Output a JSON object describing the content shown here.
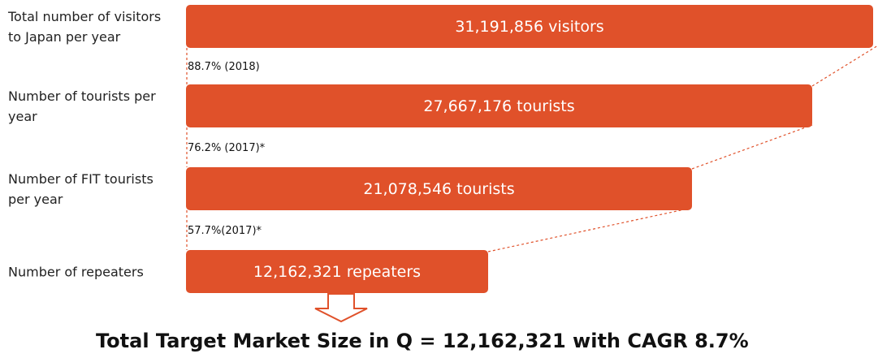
{
  "stages": [
    {
      "label": [
        "Total number of visitors",
        "to Japan per year"
      ],
      "text": "31,191,856 visitors"
    },
    {
      "label": [
        "Number of tourists per",
        "year"
      ],
      "text": "27,667,176 tourists"
    },
    {
      "label": [
        "Number of FIT tourists",
        "per year"
      ],
      "text": "21,078,546 tourists"
    },
    {
      "label": [
        "Number of repeaters"
      ],
      "text": "12,162,321 repeaters"
    }
  ],
  "rates": [
    "88.7% (2018)",
    "76.2% (2017)*",
    "57.7%(2017)*"
  ],
  "headline": "Total Target Market Size in Q = 12,162,321 with CAGR 8.7%"
}
